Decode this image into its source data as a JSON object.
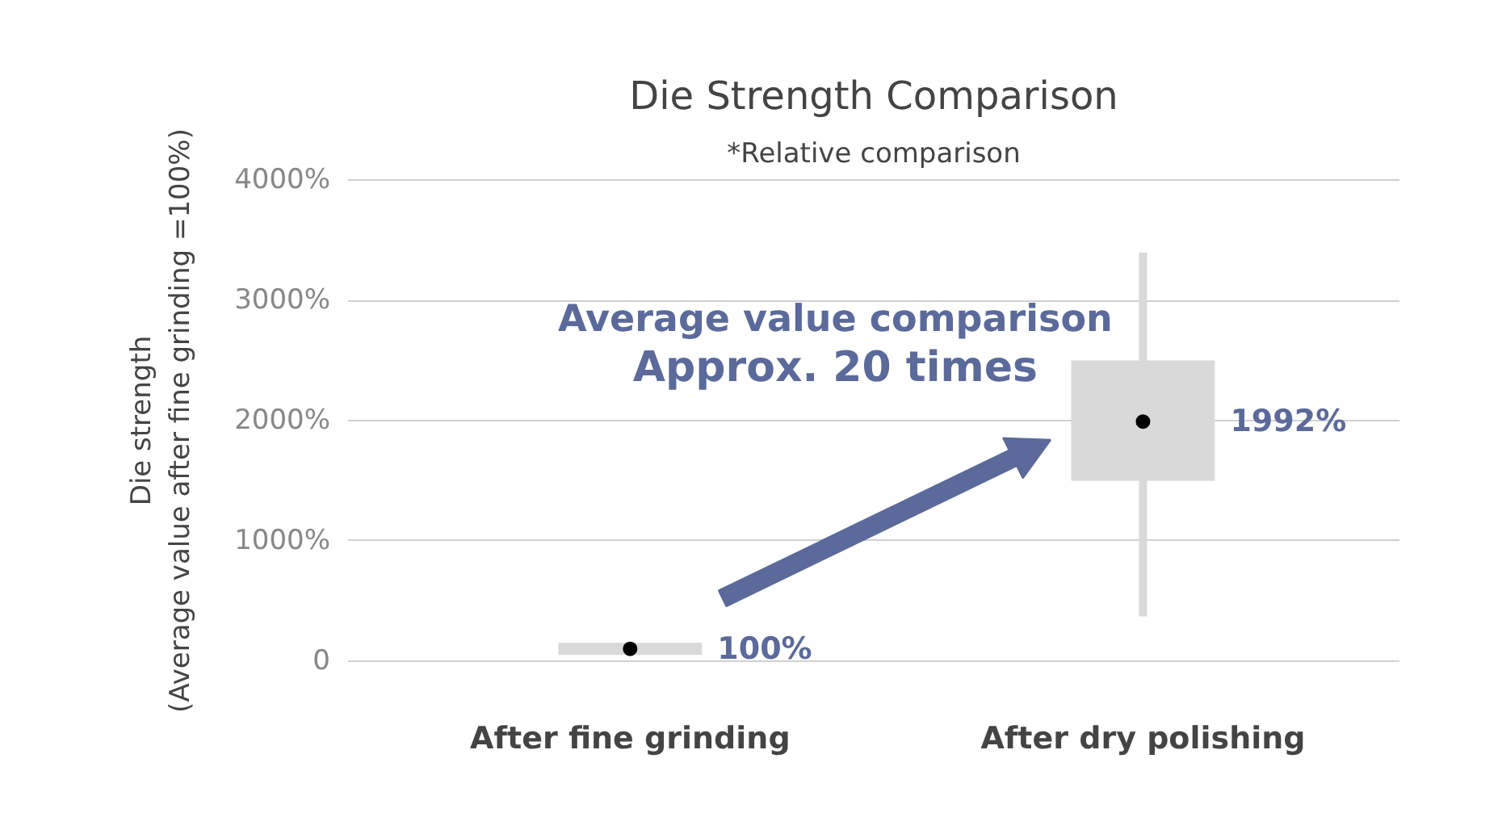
{
  "chart_data": {
    "type": "box",
    "title": "Die Strength Comparison",
    "subtitle": "*Relative comparison",
    "ylabel": "Die strength\n(Average value after fine grinding =100%)",
    "categories": [
      "After fine grinding",
      "After dry polishing"
    ],
    "color": "#d9d9d9",
    "boxes": [
      {
        "low": 50,
        "q1": 50,
        "q3": 150,
        "high": 150,
        "mean": 100
      },
      {
        "low": 370,
        "q1": 1500,
        "q3": 2500,
        "high": 3400,
        "mean": 1992
      }
    ],
    "ylim": [
      0,
      4000
    ],
    "yticks": [
      0,
      {
        "value": 1000,
        "label": "1000%"
      },
      {
        "value": 2000,
        "label": "2000%"
      },
      {
        "value": 3000,
        "label": "3000%"
      },
      {
        "value": 4000,
        "label": "4000%"
      }
    ],
    "grid": "y",
    "annotations": [
      {
        "text": "100%",
        "x": "After fine grinding",
        "y": 100
      },
      {
        "text": "1992%",
        "x": "After dry polishing",
        "y": 1992
      },
      "Average value comparison",
      "Approx. 20 times"
    ]
  }
}
